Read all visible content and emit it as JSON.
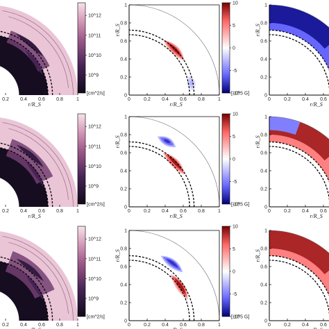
{
  "chart_data": {
    "type": "heatmap",
    "layout": "3 rows x 3 columns of meridional quadrant plots",
    "xlabel": "r/R_S",
    "ylabel": "r/R_S",
    "x_ticks": [
      "0",
      "0.2",
      "0.4",
      "0.6",
      "0.8",
      "1"
    ],
    "y_ticks": [
      "0",
      "0.2",
      "0.4",
      "0.6",
      "0.8",
      "1"
    ],
    "tachocline_dashed_radii": [
      0.67,
      0.72
    ],
    "columns": [
      {
        "quantity": "diffusivity",
        "colormap": "white-pink-purple-black",
        "colorbar": {
          "scale": "log",
          "ticks": [
            "10^9",
            "10^10",
            "10^11",
            "10^12"
          ],
          "unit": "[cm^2/s]"
        }
      },
      {
        "quantity": "toroidal field",
        "colormap": "blue-white-red",
        "colorbar": {
          "scale": "linear",
          "range": [
            -10,
            10
          ],
          "ticks": [
            "-10",
            "-5",
            "0",
            "5",
            "10"
          ],
          "unit": "[10^5 G]"
        }
      },
      {
        "quantity": "field (partial view)",
        "colormap": "blue-white-red"
      }
    ],
    "rows": [
      {
        "diffusivity_bands": [
          0.62,
          0.76
        ],
        "toroidal_lobes": [
          {
            "sign": "positive",
            "r": 0.72,
            "lat_deg": [
              32,
              58
            ],
            "peak": 9
          },
          {
            "sign": "negative",
            "r": 0.7,
            "lat_deg": [
              4,
              18
            ],
            "peak": -3
          }
        ],
        "right_panel": "negative field near top"
      },
      {
        "diffusivity_bands": [
          0.6,
          0.8
        ],
        "toroidal_lobes": [
          {
            "sign": "negative",
            "r": 0.84,
            "lat_deg": [
              52,
              68
            ],
            "peak": -8
          },
          {
            "sign": "positive",
            "r": 0.71,
            "lat_deg": [
              30,
              58
            ],
            "peak": 9
          }
        ],
        "right_panel": "positive field, negative patch near pole"
      },
      {
        "diffusivity_bands": [
          0.58,
          0.82
        ],
        "toroidal_lobes": [
          {
            "sign": "negative",
            "r": 0.8,
            "lat_deg": [
              42,
              64
            ],
            "peak": -8
          },
          {
            "sign": "positive",
            "r": 0.69,
            "lat_deg": [
              20,
              48
            ],
            "peak": 9
          }
        ],
        "right_panel": "positive field near top"
      }
    ]
  }
}
